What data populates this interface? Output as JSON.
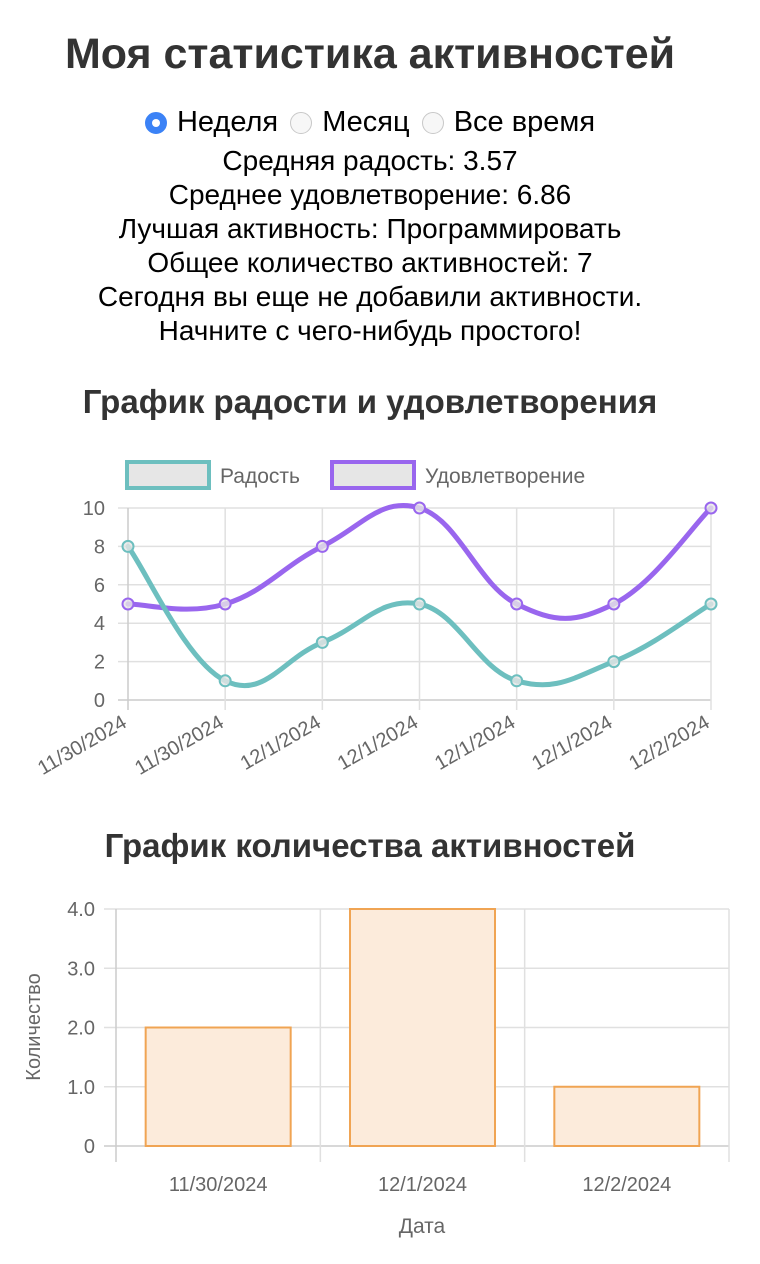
{
  "header": {
    "title": "Моя статистика активностей"
  },
  "period_filter": {
    "options": [
      {
        "label": "Неделя",
        "checked": true
      },
      {
        "label": "Месяц",
        "checked": false
      },
      {
        "label": "Все время",
        "checked": false
      }
    ]
  },
  "stats": {
    "avg_joy": "Средняя радость: 3.57",
    "avg_satisfaction": "Среднее удовлетворение: 6.86",
    "best_activity": "Лучшая активность: Программировать",
    "total_activities": "Общее количество активностей: 7",
    "today_message_1": "Сегодня вы еще не добавили активности.",
    "today_message_2": "Начните с чего-нибудь простого!"
  },
  "colors": {
    "joy": "#6dbfbf",
    "satisfaction": "#9966ee",
    "bar_fill": "#fcebdb",
    "bar_border": "#f0a453",
    "radio_accent": "#3b82f6",
    "grid": "#e0e0e0",
    "axis_text": "#666666"
  },
  "chart_data": [
    {
      "type": "line",
      "title": "График радости и удовлетворения",
      "x": [
        "11/30/2024",
        "11/30/2024",
        "12/1/2024",
        "12/1/2024",
        "12/1/2024",
        "12/1/2024",
        "12/2/2024"
      ],
      "series": [
        {
          "name": "Радость",
          "values": [
            8,
            1,
            3,
            5,
            1,
            2,
            5
          ],
          "color": "#6dbfbf"
        },
        {
          "name": "Удовлетворение",
          "values": [
            5,
            5,
            8,
            10,
            5,
            5,
            10
          ],
          "color": "#9966ee"
        }
      ],
      "yticks": [
        "0",
        "2",
        "4",
        "6",
        "8",
        "10"
      ],
      "ylim": [
        0,
        10
      ],
      "xlabel": "",
      "ylabel": "",
      "legend_position": "top",
      "grid": true,
      "smooth": true
    },
    {
      "type": "bar",
      "title": "График количества активностей",
      "categories": [
        "11/30/2024",
        "12/1/2024",
        "12/2/2024"
      ],
      "values": [
        2,
        4,
        1
      ],
      "yticks": [
        "0",
        "1.0",
        "2.0",
        "3.0",
        "4.0"
      ],
      "ylim": [
        0,
        4
      ],
      "xlabel": "Дата",
      "ylabel": "Количество",
      "grid": true
    }
  ]
}
